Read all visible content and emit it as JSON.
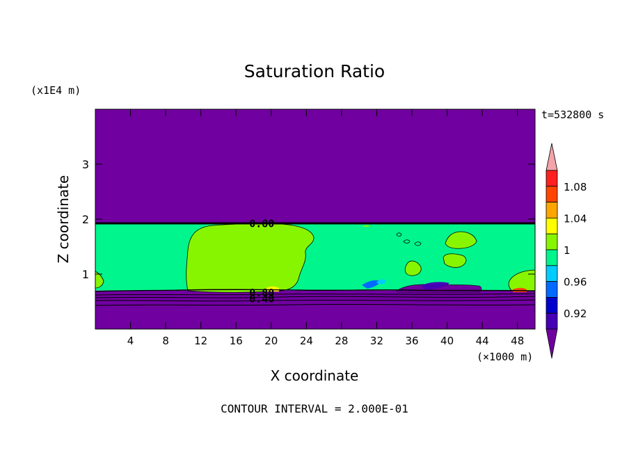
{
  "chart_data": {
    "type": "contour",
    "title": "Saturation Ratio",
    "xlabel": "X coordinate",
    "ylabel": "Z coordinate",
    "x_units": "(×1000 m)",
    "y_units": "(x1E4 m)",
    "time_label": "t=532800 s",
    "contour_interval_text": "CONTOUR INTERVAL = 2.000E-01",
    "xlim": [
      0,
      50
    ],
    "ylim": [
      0,
      4
    ],
    "x_ticks": [
      {
        "value": 4,
        "label": "4"
      },
      {
        "value": 8,
        "label": "8"
      },
      {
        "value": 12,
        "label": "12"
      },
      {
        "value": 16,
        "label": "16"
      },
      {
        "value": 20,
        "label": "20"
      },
      {
        "value": 24,
        "label": "24"
      },
      {
        "value": 28,
        "label": "28"
      },
      {
        "value": 32,
        "label": "32"
      },
      {
        "value": 36,
        "label": "36"
      },
      {
        "value": 40,
        "label": "40"
      },
      {
        "value": 44,
        "label": "44"
      },
      {
        "value": 48,
        "label": "48"
      }
    ],
    "y_ticks": [
      {
        "value": 1,
        "label": "1"
      },
      {
        "value": 2,
        "label": "2"
      },
      {
        "value": 3,
        "label": "3"
      }
    ],
    "contour_labels": [
      {
        "x": 17.5,
        "y": 1.92,
        "label": "0.80"
      },
      {
        "x": 17.5,
        "y": 0.66,
        "label": "0.80"
      },
      {
        "x": 17.5,
        "y": 0.55,
        "label": "0.40"
      }
    ],
    "regions": [
      {
        "name": "upper-dry-layer",
        "color": "#7000A0",
        "y_range": [
          1.92,
          4.0
        ]
      },
      {
        "name": "moist-layer",
        "color": "#00F58C",
        "y_range": [
          0.7,
          1.92
        ]
      },
      {
        "name": "lower-dry-layer",
        "color": "#7000A0",
        "y_range": [
          0.0,
          0.7
        ]
      }
    ],
    "colorbar": {
      "levels": [
        {
          "color": "#7000A0",
          "label": ""
        },
        {
          "color": "#4500B6",
          "label": "0.92"
        },
        {
          "color": "#0000CC",
          "label": ""
        },
        {
          "color": "#006AFF",
          "label": "0.96"
        },
        {
          "color": "#00CCFF",
          "label": ""
        },
        {
          "color": "#00F58C",
          "label": "1"
        },
        {
          "color": "#88F500",
          "label": ""
        },
        {
          "color": "#FFFF00",
          "label": "1.04"
        },
        {
          "color": "#FFA500",
          "label": ""
        },
        {
          "color": "#FF4500",
          "label": "1.08"
        },
        {
          "color": "#FF2020",
          "label": ""
        },
        {
          "color": "#F4A3A8",
          "label": ""
        }
      ]
    }
  }
}
